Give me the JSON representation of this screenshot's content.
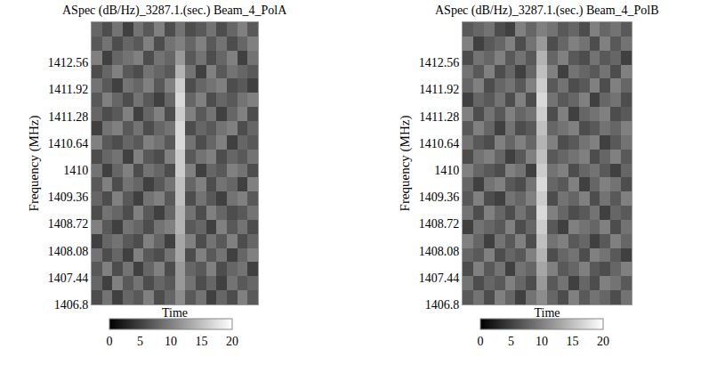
{
  "chart_data": [
    {
      "type": "heatmap",
      "title": "ASpec (dB/Hz)_3287.1.(sec.) Beam_4_PolA",
      "x_label": "Time",
      "y_label": "Frequency (MHz)",
      "ylim": [
        1406.8,
        1413.52
      ],
      "yticks": [
        1406.8,
        1407.44,
        1408.08,
        1408.72,
        1409.36,
        1410,
        1410.64,
        1411.28,
        1411.92,
        1412.56
      ],
      "tick_labels": "y",
      "color_range": [
        0,
        20
      ],
      "color_ticks": [
        0,
        5,
        10,
        15,
        20
      ],
      "cells": [
        [
          6,
          9,
          5,
          8,
          7,
          10,
          6,
          8,
          11,
          7,
          9,
          5,
          8,
          6,
          10,
          7
        ],
        [
          8,
          5,
          10,
          7,
          9,
          6,
          8,
          7,
          12,
          9,
          6,
          8,
          5,
          9,
          7,
          8
        ],
        [
          7,
          10,
          6,
          9,
          5,
          8,
          10,
          6,
          12,
          8,
          7,
          10,
          6,
          8,
          9,
          5
        ],
        [
          9,
          6,
          8,
          5,
          10,
          7,
          6,
          9,
          13,
          6,
          10,
          7,
          9,
          5,
          8,
          10
        ],
        [
          5,
          8,
          9,
          7,
          6,
          10,
          8,
          5,
          13,
          10,
          6,
          9,
          7,
          10,
          6,
          8
        ],
        [
          10,
          7,
          5,
          9,
          8,
          6,
          9,
          10,
          14,
          7,
          8,
          5,
          10,
          7,
          9,
          6
        ],
        [
          6,
          9,
          8,
          6,
          10,
          7,
          5,
          8,
          14,
          9,
          6,
          10,
          8,
          6,
          7,
          9
        ],
        [
          8,
          6,
          10,
          7,
          5,
          9,
          10,
          7,
          15,
          6,
          9,
          7,
          5,
          9,
          10,
          7
        ],
        [
          7,
          10,
          6,
          9,
          8,
          5,
          7,
          9,
          15,
          8,
          10,
          6,
          9,
          8,
          5,
          10
        ],
        [
          9,
          5,
          8,
          10,
          6,
          9,
          8,
          6,
          16,
          10,
          5,
          8,
          7,
          10,
          9,
          6
        ],
        [
          6,
          8,
          9,
          5,
          10,
          7,
          6,
          10,
          16,
          7,
          9,
          10,
          6,
          8,
          7,
          9
        ],
        [
          10,
          7,
          6,
          8,
          7,
          10,
          9,
          7,
          17,
          9,
          6,
          8,
          10,
          5,
          8,
          7
        ],
        [
          5,
          9,
          10,
          7,
          9,
          6,
          8,
          9,
          17,
          6,
          8,
          7,
          9,
          10,
          6,
          8
        ],
        [
          8,
          6,
          7,
          10,
          5,
          8,
          10,
          6,
          16,
          10,
          7,
          9,
          5,
          8,
          10,
          6
        ],
        [
          7,
          10,
          8,
          6,
          9,
          7,
          5,
          8,
          17,
          8,
          10,
          6,
          8,
          7,
          9,
          10
        ],
        [
          9,
          7,
          5,
          9,
          8,
          10,
          7,
          10,
          16,
          6,
          8,
          9,
          10,
          6,
          7,
          5
        ],
        [
          6,
          8,
          10,
          7,
          6,
          9,
          8,
          7,
          14,
          9,
          5,
          10,
          7,
          9,
          8,
          7
        ],
        [
          10,
          5,
          8,
          9,
          10,
          6,
          9,
          8,
          12,
          7,
          9,
          6,
          8,
          10,
          5,
          9
        ],
        [
          7,
          9,
          6,
          8,
          7,
          10,
          6,
          9,
          10,
          8,
          10,
          7,
          9,
          6,
          8,
          10
        ],
        [
          8,
          6,
          9,
          5,
          9,
          7,
          10,
          6,
          9,
          6,
          7,
          9,
          6,
          8,
          10,
          7
        ]
      ]
    },
    {
      "type": "heatmap",
      "title": "ASpec (dB/Hz)_3287.1.(sec.) Beam_4_PolB",
      "x_label": "Time",
      "y_label": "Frequency (MHz)",
      "ylim": [
        1406.8,
        1413.52
      ],
      "yticks": [
        1406.8,
        1407.44,
        1408.08,
        1408.72,
        1409.36,
        1410,
        1410.64,
        1411.28,
        1411.92,
        1412.56
      ],
      "tick_labels": "y",
      "color_range": [
        0,
        20
      ],
      "color_ticks": [
        0,
        5,
        10,
        15,
        20
      ],
      "cells": [
        [
          7,
          9,
          6,
          10,
          8,
          5,
          9,
          11,
          8,
          6,
          10,
          7,
          9,
          8,
          6,
          9
        ],
        [
          9,
          6,
          8,
          7,
          10,
          8,
          6,
          12,
          7,
          9,
          5,
          8,
          6,
          10,
          9,
          7
        ],
        [
          6,
          10,
          7,
          9,
          5,
          9,
          8,
          13,
          10,
          7,
          8,
          10,
          7,
          6,
          8,
          10
        ],
        [
          8,
          7,
          10,
          6,
          8,
          7,
          10,
          14,
          6,
          8,
          9,
          6,
          10,
          9,
          7,
          5
        ],
        [
          10,
          8,
          5,
          9,
          7,
          10,
          6,
          15,
          9,
          10,
          7,
          8,
          5,
          7,
          10,
          8
        ],
        [
          5,
          9,
          8,
          7,
          10,
          6,
          8,
          16,
          7,
          5,
          10,
          9,
          8,
          10,
          6,
          9
        ],
        [
          9,
          6,
          10,
          8,
          6,
          9,
          7,
          17,
          10,
          8,
          6,
          7,
          9,
          5,
          8,
          7
        ],
        [
          7,
          10,
          6,
          5,
          9,
          8,
          10,
          16,
          6,
          9,
          8,
          10,
          6,
          9,
          7,
          10
        ],
        [
          8,
          5,
          9,
          10,
          7,
          6,
          9,
          17,
          8,
          7,
          10,
          5,
          8,
          10,
          9,
          6
        ],
        [
          10,
          8,
          7,
          6,
          10,
          9,
          5,
          16,
          9,
          10,
          6,
          8,
          9,
          7,
          5,
          8
        ],
        [
          6,
          9,
          10,
          8,
          5,
          7,
          10,
          15,
          7,
          8,
          9,
          10,
          6,
          8,
          10,
          7
        ],
        [
          9,
          7,
          6,
          10,
          8,
          10,
          8,
          14,
          10,
          6,
          7,
          9,
          10,
          5,
          7,
          9
        ],
        [
          7,
          10,
          8,
          5,
          9,
          6,
          7,
          15,
          8,
          9,
          10,
          6,
          7,
          9,
          8,
          10
        ],
        [
          10,
          6,
          9,
          7,
          10,
          8,
          9,
          16,
          6,
          10,
          5,
          8,
          9,
          10,
          6,
          7
        ],
        [
          5,
          8,
          7,
          9,
          6,
          10,
          6,
          17,
          9,
          7,
          8,
          10,
          5,
          8,
          9,
          6
        ],
        [
          8,
          10,
          6,
          8,
          9,
          7,
          10,
          16,
          7,
          9,
          6,
          7,
          10,
          6,
          10,
          8
        ],
        [
          9,
          7,
          10,
          6,
          8,
          5,
          8,
          15,
          10,
          5,
          9,
          8,
          7,
          9,
          6,
          10
        ],
        [
          6,
          9,
          8,
          10,
          7,
          9,
          7,
          14,
          8,
          10,
          7,
          6,
          9,
          7,
          8,
          5
        ],
        [
          10,
          5,
          7,
          8,
          10,
          6,
          9,
          12,
          6,
          8,
          10,
          9,
          6,
          10,
          7,
          9
        ],
        [
          7,
          8,
          9,
          6,
          5,
          10,
          8,
          10,
          9,
          7,
          8,
          6,
          10,
          8,
          9,
          7
        ]
      ]
    }
  ]
}
